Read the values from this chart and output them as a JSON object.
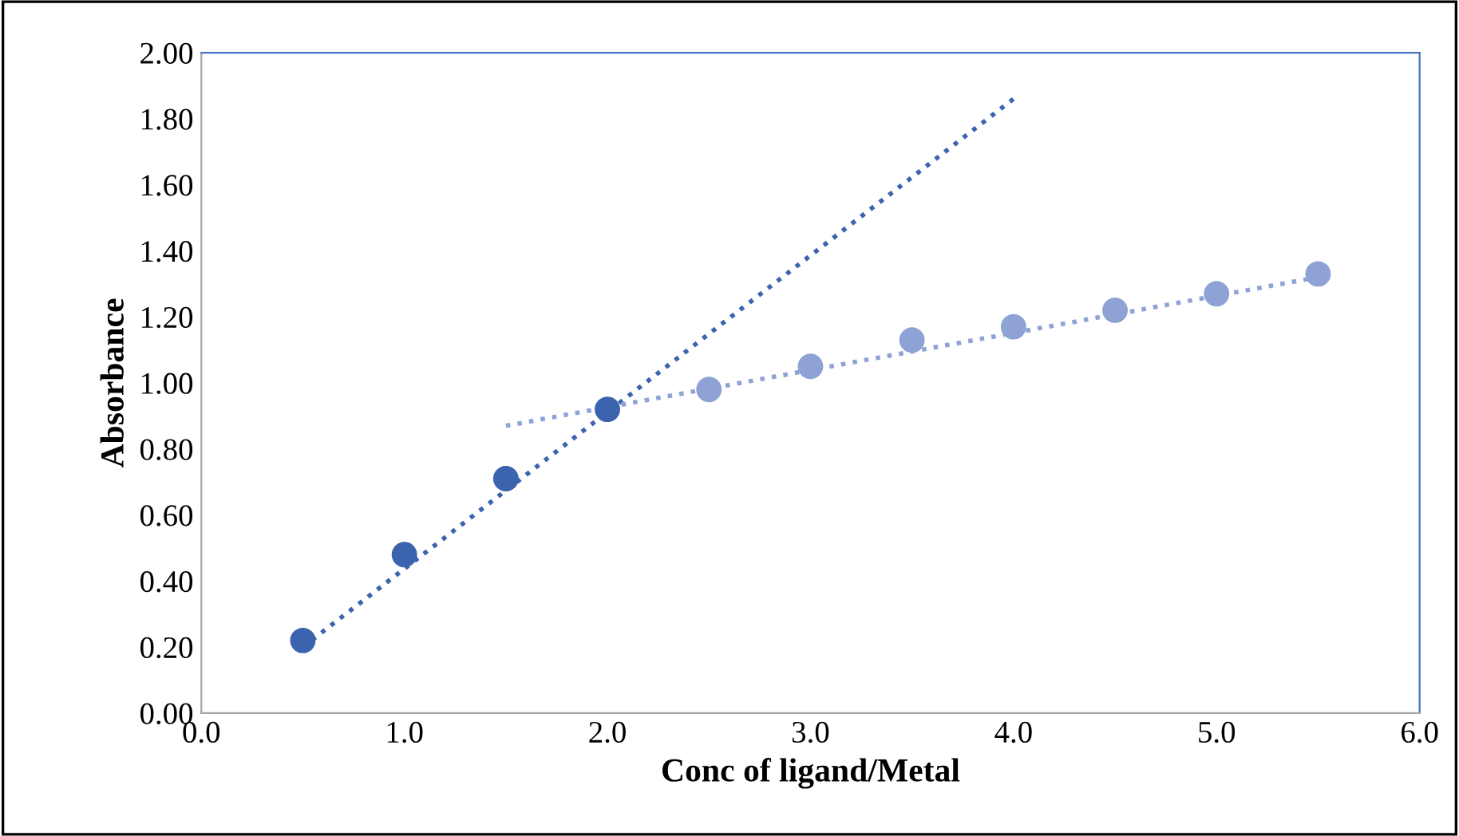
{
  "chart_data": {
    "type": "scatter",
    "xlabel": "Conc of ligand/Metal",
    "ylabel": "Absorbance",
    "series": [
      {
        "color": "#3c63ae",
        "x": [
          0.5,
          1.0,
          1.5,
          2.0
        ],
        "values": [
          0.22,
          0.48,
          0.71,
          0.92
        ],
        "marker": "circle"
      },
      {
        "color": "#8fa2d5",
        "x": [
          2.5,
          3.0,
          3.5,
          4.0,
          4.5,
          5.0,
          5.5
        ],
        "values": [
          0.98,
          1.05,
          1.13,
          1.17,
          1.22,
          1.27,
          1.33
        ],
        "marker": "circle"
      },
      {
        "type": "line",
        "color": "#3c63ae",
        "x": [
          0.5,
          4.0
        ],
        "values": [
          0.2,
          1.86
        ],
        "line_style": "dotted",
        "marker": "none"
      },
      {
        "type": "line",
        "color": "#8fa2d5",
        "x": [
          1.5,
          5.5
        ],
        "values": [
          0.87,
          1.32
        ],
        "line_style": "dotted",
        "marker": "none"
      }
    ],
    "xlim": [
      0,
      6
    ],
    "ylim": [
      0,
      2
    ],
    "xticks": [
      {
        "value": 0,
        "label": "0.0"
      },
      {
        "value": 1,
        "label": "1.0"
      },
      {
        "value": 2,
        "label": "2.0"
      },
      {
        "value": 3,
        "label": "3.0"
      },
      {
        "value": 4,
        "label": "4.0"
      },
      {
        "value": 5,
        "label": "5.0"
      },
      {
        "value": 6,
        "label": "6.0"
      }
    ],
    "yticks": [
      {
        "value": 0,
        "label": "0.00"
      },
      {
        "value": 0.2,
        "label": "0.20"
      },
      {
        "value": 0.4,
        "label": "0.40"
      },
      {
        "value": 0.6,
        "label": "0.60"
      },
      {
        "value": 0.8,
        "label": "0.80"
      },
      {
        "value": 1.0,
        "label": "1.00"
      },
      {
        "value": 1.2,
        "label": "1.20"
      },
      {
        "value": 1.4,
        "label": "1.40"
      },
      {
        "value": 1.6,
        "label": "1.60"
      },
      {
        "value": 1.8,
        "label": "1.80"
      },
      {
        "value": 2.0,
        "label": "2.00"
      }
    ],
    "grid": false,
    "legend": false
  }
}
